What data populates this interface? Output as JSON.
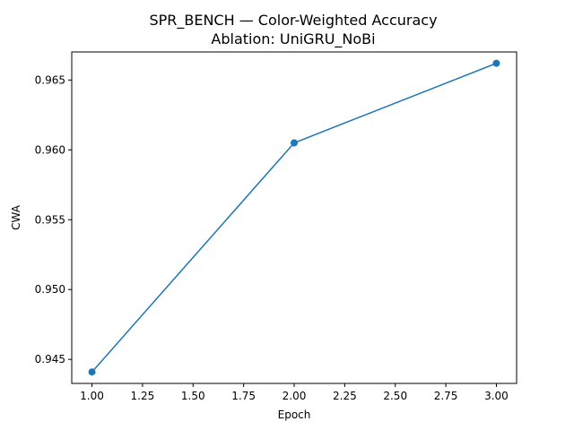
{
  "chart_data": {
    "type": "line",
    "title": "SPR_BENCH — Color-Weighted Accuracy",
    "subtitle": "Ablation: UniGRU_NoBi",
    "xlabel": "Epoch",
    "ylabel": "CWA",
    "xlim": [
      0.9,
      3.1
    ],
    "ylim": [
      0.94328,
      0.96701
    ],
    "x_ticks": [
      1.0,
      1.25,
      1.5,
      1.75,
      2.0,
      2.25,
      2.5,
      2.75,
      3.0
    ],
    "x_tick_labels": [
      "1.00",
      "1.25",
      "1.50",
      "1.75",
      "2.00",
      "2.25",
      "2.50",
      "2.75",
      "3.00"
    ],
    "y_ticks": [
      0.945,
      0.95,
      0.955,
      0.96,
      0.965
    ],
    "y_tick_labels": [
      "0.945",
      "0.950",
      "0.955",
      "0.960",
      "0.965"
    ],
    "grid": false,
    "series": [
      {
        "color": "#1f77b4",
        "marker": "circle",
        "x": [
          1,
          2,
          3
        ],
        "y": [
          0.9441,
          0.9605,
          0.9662
        ]
      }
    ]
  }
}
